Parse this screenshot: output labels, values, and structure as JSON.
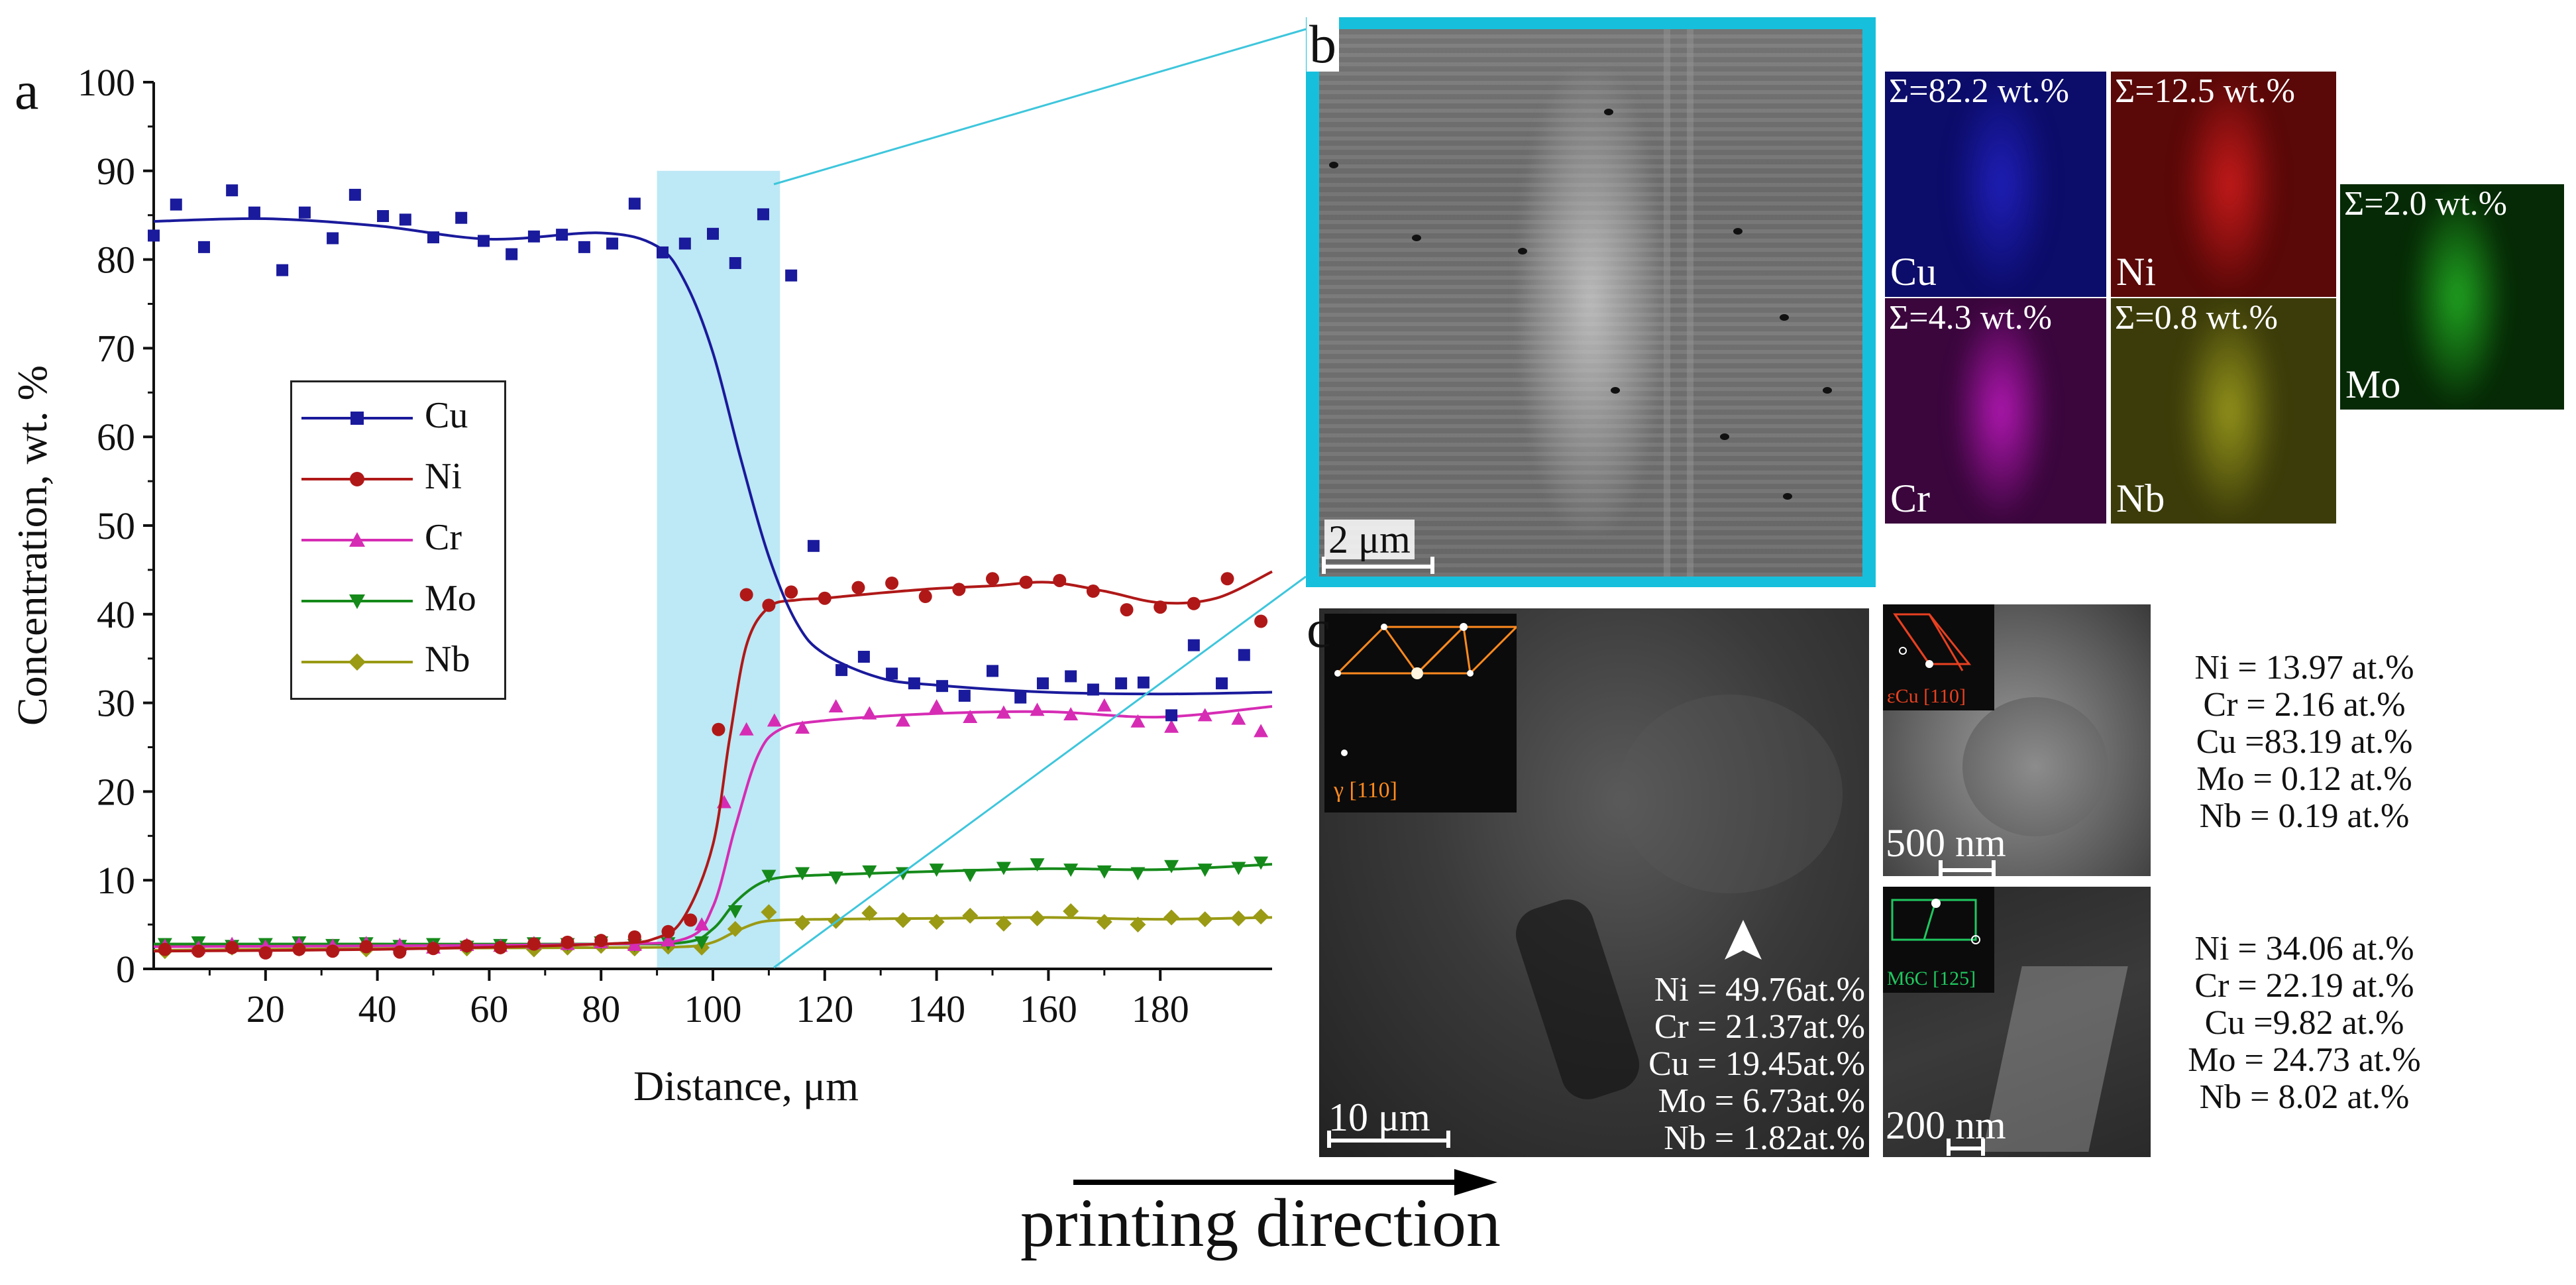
{
  "panel_labels": {
    "a": "a",
    "b": "b",
    "c": "c"
  },
  "chart_data": {
    "type": "line+scatter",
    "title": "",
    "xlabel": "Distance, μm",
    "ylabel": "Concentration, wt. %",
    "xlim": [
      0,
      200
    ],
    "ylim": [
      0,
      100
    ],
    "xticks": [
      20,
      40,
      60,
      80,
      100,
      120,
      140,
      160,
      180
    ],
    "yticks": [
      0,
      10,
      20,
      30,
      40,
      50,
      60,
      70,
      80,
      90,
      100
    ],
    "highlight_band": [
      90,
      112
    ],
    "series": [
      {
        "name": "Cu",
        "color": "#1a1a9c",
        "marker": "square",
        "x": [
          0,
          4,
          9,
          14,
          18,
          23,
          27,
          32,
          36,
          41,
          45,
          50,
          55,
          59,
          64,
          68,
          73,
          77,
          82,
          86,
          91,
          95,
          100,
          104,
          109,
          114,
          118,
          123,
          127,
          132,
          136,
          141,
          145,
          150,
          155,
          159,
          164,
          168,
          173,
          177,
          182,
          186,
          191,
          195
        ],
        "points": [
          82.7,
          86.2,
          81.4,
          87.8,
          85.3,
          78.8,
          85.3,
          82.4,
          87.3,
          84.9,
          84.5,
          82.5,
          84.7,
          82.1,
          80.6,
          82.6,
          82.8,
          81.4,
          81.8,
          86.3,
          80.8,
          81.8,
          82.9,
          79.6,
          85.1,
          78.2,
          47.7,
          33.7,
          35.2,
          33.3,
          32.2,
          31.9,
          30.8,
          33.6,
          30.6,
          32.2,
          33.0,
          31.5,
          32.2,
          32.3,
          28.6,
          36.5,
          32.2,
          35.4
        ],
        "fit_x": [
          0,
          20,
          40,
          60,
          80,
          90,
          95,
          100,
          105,
          110,
          115,
          120,
          130,
          140,
          160,
          180,
          200
        ],
        "fit_y": [
          84.3,
          84.6,
          83.8,
          82.3,
          83.0,
          81.5,
          77.5,
          69.5,
          57.5,
          46.5,
          39.0,
          35.5,
          32.8,
          32.0,
          31.2,
          31.0,
          31.2
        ]
      },
      {
        "name": "Ni",
        "color": "#b01818",
        "marker": "circle",
        "x": [
          2,
          8,
          14,
          20,
          26,
          32,
          38,
          44,
          50,
          56,
          62,
          68,
          74,
          80,
          86,
          92,
          96,
          101,
          106,
          110,
          114,
          120,
          126,
          132,
          138,
          144,
          150,
          156,
          162,
          168,
          174,
          180,
          186,
          192,
          198
        ],
        "points": [
          2.2,
          2.0,
          2.4,
          1.8,
          2.2,
          2.0,
          2.5,
          1.9,
          2.3,
          2.6,
          2.4,
          2.8,
          3.0,
          3.2,
          3.6,
          4.2,
          5.5,
          27.0,
          42.2,
          41.0,
          42.5,
          41.8,
          43.0,
          43.5,
          42.0,
          42.8,
          44.0,
          43.6,
          43.8,
          42.6,
          40.5,
          40.8,
          41.2,
          44.0,
          39.2
        ],
        "fit_x": [
          0,
          40,
          80,
          90,
          95,
          100,
          103,
          106,
          110,
          115,
          120,
          130,
          140,
          150,
          160,
          170,
          180,
          190,
          200
        ],
        "fit_y": [
          2.0,
          2.2,
          2.8,
          3.5,
          6.0,
          14.0,
          26.0,
          36.5,
          40.8,
          41.6,
          41.8,
          42.4,
          42.9,
          43.2,
          43.6,
          42.6,
          41.3,
          41.8,
          44.8
        ]
      },
      {
        "name": "Cr",
        "color": "#d62cb4",
        "marker": "triangle-up",
        "x": [
          2,
          8,
          14,
          20,
          26,
          32,
          38,
          44,
          50,
          56,
          62,
          68,
          74,
          80,
          86,
          92,
          98,
          102,
          106,
          111,
          116,
          122,
          128,
          134,
          140,
          146,
          152,
          158,
          164,
          170,
          176,
          182,
          188,
          194,
          198
        ],
        "points": [
          2.6,
          2.4,
          2.8,
          2.5,
          2.8,
          2.6,
          2.9,
          2.7,
          2.4,
          2.7,
          2.6,
          2.9,
          2.8,
          3.0,
          2.7,
          3.2,
          5.0,
          18.8,
          27.0,
          28.0,
          27.2,
          29.6,
          28.8,
          28.0,
          29.6,
          28.4,
          28.9,
          29.2,
          28.7,
          29.7,
          27.9,
          27.3,
          28.6,
          28.2,
          26.8
        ],
        "fit_x": [
          0,
          40,
          80,
          95,
          100,
          104,
          108,
          112,
          120,
          140,
          160,
          180,
          200
        ],
        "fit_y": [
          2.5,
          2.6,
          2.8,
          3.4,
          7.0,
          16.0,
          24.0,
          27.0,
          28.0,
          28.8,
          29.0,
          28.4,
          29.6
        ]
      },
      {
        "name": "Mo",
        "color": "#158a1a",
        "marker": "triangle-down",
        "x": [
          2,
          8,
          14,
          20,
          26,
          32,
          38,
          44,
          50,
          56,
          62,
          68,
          74,
          80,
          86,
          92,
          98,
          104,
          110,
          116,
          122,
          128,
          134,
          140,
          146,
          152,
          158,
          164,
          170,
          176,
          182,
          188,
          194,
          198
        ],
        "points": [
          2.8,
          3.0,
          2.6,
          2.8,
          3.0,
          2.7,
          2.9,
          2.6,
          2.8,
          2.5,
          2.7,
          2.9,
          2.8,
          3.0,
          2.7,
          2.9,
          3.0,
          6.5,
          10.5,
          10.8,
          10.3,
          11.0,
          10.8,
          11.2,
          10.6,
          11.4,
          11.8,
          11.2,
          11.0,
          10.8,
          11.6,
          11.2,
          11.4,
          12.0
        ],
        "fit_x": [
          0,
          40,
          80,
          95,
          100,
          104,
          108,
          112,
          120,
          140,
          160,
          180,
          200
        ],
        "fit_y": [
          2.8,
          2.8,
          2.8,
          3.0,
          4.5,
          7.5,
          9.5,
          10.3,
          10.6,
          11.0,
          11.3,
          11.2,
          11.8
        ]
      },
      {
        "name": "Nb",
        "color": "#9a9a14",
        "marker": "diamond",
        "x": [
          2,
          8,
          14,
          20,
          26,
          32,
          38,
          44,
          50,
          56,
          62,
          68,
          74,
          80,
          86,
          92,
          98,
          104,
          110,
          116,
          122,
          128,
          134,
          140,
          146,
          152,
          158,
          164,
          170,
          176,
          182,
          188,
          194,
          198
        ],
        "points": [
          2.0,
          2.2,
          2.4,
          2.1,
          2.3,
          2.5,
          2.2,
          2.4,
          2.6,
          2.3,
          2.5,
          2.2,
          2.4,
          2.6,
          2.3,
          2.5,
          2.4,
          4.5,
          6.4,
          5.2,
          5.4,
          6.3,
          5.5,
          5.3,
          6.0,
          5.1,
          5.7,
          6.5,
          5.3,
          5.0,
          5.8,
          5.6,
          5.7,
          5.9
        ],
        "fit_x": [
          0,
          40,
          80,
          95,
          100,
          104,
          108,
          112,
          120,
          140,
          160,
          180,
          200
        ],
        "fit_y": [
          2.1,
          2.3,
          2.4,
          2.5,
          3.0,
          4.2,
          5.2,
          5.5,
          5.6,
          5.7,
          5.8,
          5.6,
          5.8
        ]
      }
    ]
  },
  "panel_b": {
    "scale_label": "2 μm",
    "maps": [
      {
        "element": "Cu",
        "sum": "Σ=82.2 wt.%",
        "color": "#1414c8"
      },
      {
        "element": "Ni",
        "sum": "Σ=12.5 wt.%",
        "color": "#c81414"
      },
      {
        "element": "Mo",
        "sum": "Σ=2.0 wt.%",
        "color": "#14a014"
      },
      {
        "element": "Cr",
        "sum": "Σ=4.3 wt.%",
        "color": "#c014c8"
      },
      {
        "element": "Nb",
        "sum": "Σ=0.8 wt.%",
        "color": "#c8c814"
      }
    ]
  },
  "panel_c": {
    "main": {
      "scale_label": "10 μm",
      "inset_label": "γ [110]",
      "composition": [
        "Ni = 49.76at.%",
        "Cr = 21.37at.%",
        "Cu = 19.45at.%",
        "Mo = 6.73at.%",
        "Nb = 1.82at.%"
      ]
    },
    "top_right": {
      "scale_label": "500 nm",
      "inset_label": "εCu [110]",
      "composition": [
        "Ni = 13.97 at.%",
        "Cr = 2.16 at.%",
        "Cu =83.19 at.%",
        "Mo = 0.12 at.%",
        "Nb = 0.19 at.%"
      ]
    },
    "bottom_right": {
      "scale_label": "200 nm",
      "inset_label": "M6C [125]",
      "composition": [
        "Ni = 34.06 at.%",
        "Cr = 22.19 at.%",
        "Cu =9.82 at.%",
        "Mo = 24.73 at.%",
        "Nb = 8.02 at.%"
      ]
    }
  },
  "footer": {
    "arrow_label": "printing direction"
  }
}
